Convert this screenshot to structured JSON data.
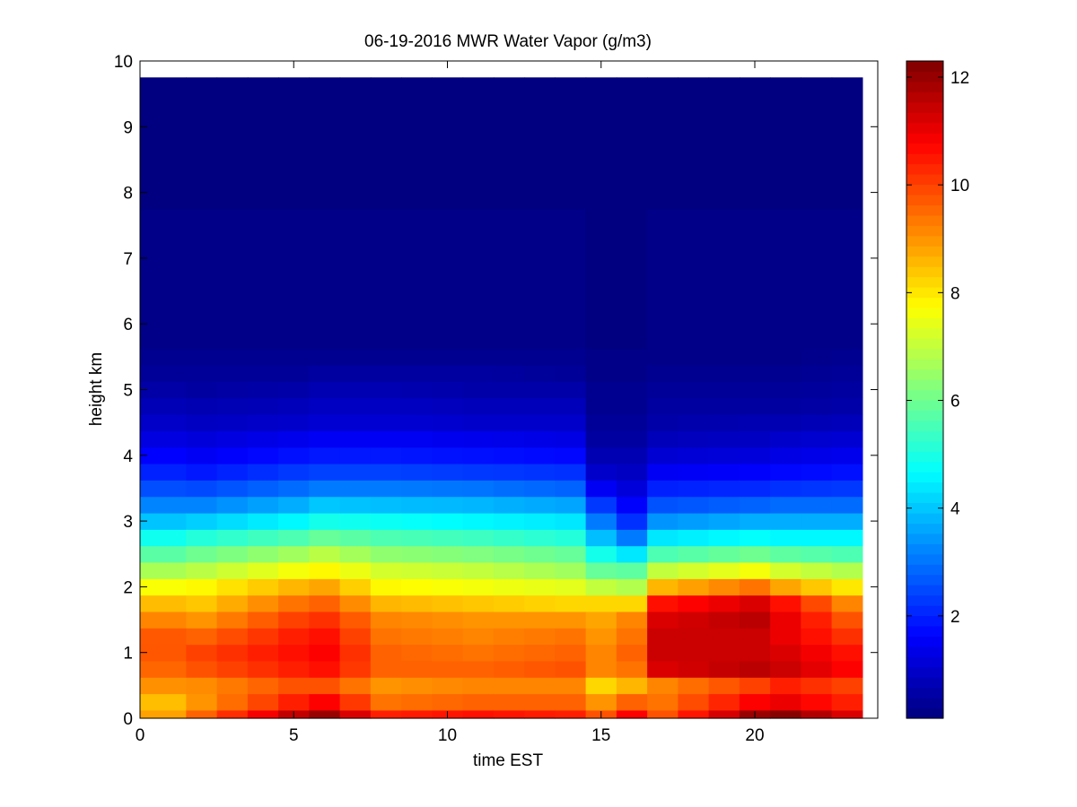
{
  "chart_data": {
    "type": "heatmap",
    "title": "06-19-2016 MWR Water Vapor (g/m3)",
    "xlabel": "time EST",
    "ylabel": "height km",
    "xlim": [
      0,
      24
    ],
    "ylim": [
      0,
      10
    ],
    "x_ticks": [
      0,
      5,
      10,
      15,
      20
    ],
    "y_ticks": [
      0,
      1,
      2,
      3,
      4,
      5,
      6,
      7,
      8,
      9,
      10
    ],
    "colorbar": {
      "colormap": "jet",
      "range": [
        0.1,
        12.3
      ],
      "ticks": [
        2,
        4,
        6,
        8,
        10,
        12
      ]
    },
    "x_edges": [
      0,
      1.5,
      2.5,
      3.5,
      4.5,
      5.5,
      6.5,
      7.5,
      8.5,
      9.5,
      10.5,
      11.5,
      12.5,
      13.5,
      14.5,
      15.5,
      16.5,
      17.5,
      18.5,
      19.5,
      20.5,
      21.5,
      22.5,
      23.5
    ],
    "heights_km": [
      0,
      0.25,
      0.5,
      0.75,
      1.0,
      1.25,
      1.5,
      1.75,
      2.0,
      2.25,
      2.5,
      2.75,
      3.0,
      3.25,
      3.5,
      3.75,
      4.0,
      4.25,
      4.5,
      4.75,
      5.0,
      5.25,
      5.5,
      5.75,
      9.75
    ],
    "profiles": [
      {
        "t": 0,
        "v": [
          8.4,
          8.2,
          9.0,
          9.4,
          9.6,
          9.8,
          9.3,
          8.6,
          7.6,
          6.6,
          5.6,
          4.7,
          3.9,
          3.2,
          2.6,
          2.1,
          1.7,
          1.3,
          1.0,
          0.8,
          0.6,
          0.4,
          0.3,
          0.2,
          0.1
        ]
      },
      {
        "t": 2,
        "v": [
          9.6,
          9.0,
          9.1,
          9.8,
          10.0,
          9.6,
          9.0,
          8.4,
          7.8,
          6.9,
          6.0,
          5.1,
          4.1,
          3.2,
          2.5,
          1.9,
          1.5,
          1.2,
          0.9,
          0.7,
          0.5,
          0.4,
          0.3,
          0.2,
          0.1
        ]
      },
      {
        "t": 5,
        "v": [
          11.5,
          10.4,
          9.8,
          10.4,
          10.6,
          10.4,
          10.0,
          9.4,
          8.6,
          7.6,
          6.6,
          5.6,
          4.6,
          3.7,
          2.9,
          2.3,
          1.8,
          1.4,
          1.0,
          0.8,
          0.6,
          0.4,
          0.3,
          0.2,
          0.1
        ]
      },
      {
        "t": 6,
        "v": [
          12.0,
          10.8,
          9.8,
          10.6,
          10.8,
          10.6,
          10.2,
          9.6,
          8.8,
          7.8,
          6.9,
          5.9,
          4.9,
          4.0,
          3.1,
          2.4,
          1.9,
          1.5,
          1.1,
          0.9,
          0.7,
          0.5,
          0.3,
          0.2,
          0.1
        ]
      },
      {
        "t": 8,
        "v": [
          10.4,
          9.4,
          9.0,
          9.6,
          9.6,
          9.4,
          9.2,
          8.6,
          7.8,
          7.2,
          6.4,
          5.6,
          4.8,
          3.9,
          3.1,
          2.4,
          1.9,
          1.5,
          1.1,
          0.9,
          0.7,
          0.5,
          0.3,
          0.2,
          0.1
        ]
      },
      {
        "t": 11,
        "v": [
          10.6,
          9.6,
          9.2,
          9.6,
          9.4,
          9.2,
          9.0,
          8.4,
          7.6,
          7.0,
          6.2,
          5.4,
          4.6,
          3.8,
          3.0,
          2.3,
          1.8,
          1.4,
          1.0,
          0.8,
          0.6,
          0.5,
          0.3,
          0.2,
          0.1
        ]
      },
      {
        "t": 14,
        "v": [
          10.4,
          9.6,
          9.2,
          9.8,
          9.6,
          9.4,
          9.0,
          8.2,
          7.4,
          6.6,
          5.9,
          5.1,
          4.4,
          3.6,
          2.8,
          2.2,
          1.7,
          1.3,
          1.0,
          0.8,
          0.6,
          0.4,
          0.3,
          0.2,
          0.1
        ]
      },
      {
        "t": 15,
        "v": [
          9.8,
          9.0,
          8.2,
          9.2,
          9.2,
          9.0,
          8.8,
          8.2,
          7.0,
          5.9,
          4.9,
          3.9,
          3.1,
          2.3,
          1.5,
          1.0,
          0.7,
          0.5,
          0.4,
          0.3,
          0.3,
          0.2,
          0.2,
          0.1,
          0.1
        ]
      },
      {
        "t": 16,
        "v": [
          10.8,
          9.6,
          8.6,
          9.4,
          9.6,
          9.4,
          9.2,
          8.2,
          6.8,
          5.8,
          4.4,
          3.1,
          2.2,
          1.6,
          1.2,
          0.9,
          0.7,
          0.5,
          0.4,
          0.3,
          0.3,
          0.2,
          0.2,
          0.1,
          0.1
        ]
      },
      {
        "t": 17,
        "v": [
          9.8,
          9.4,
          9.2,
          11.2,
          11.4,
          11.4,
          11.2,
          10.6,
          8.6,
          7.0,
          5.6,
          4.4,
          3.4,
          2.6,
          2.0,
          1.5,
          1.1,
          0.8,
          0.6,
          0.5,
          0.4,
          0.3,
          0.2,
          0.2,
          0.1
        ]
      },
      {
        "t": 20,
        "v": [
          12.0,
          10.8,
          10.0,
          11.6,
          11.4,
          11.4,
          11.6,
          11.2,
          9.4,
          7.6,
          6.0,
          4.7,
          3.7,
          2.8,
          2.1,
          1.6,
          1.2,
          0.9,
          0.7,
          0.5,
          0.4,
          0.3,
          0.2,
          0.2,
          0.1
        ]
      },
      {
        "t": 21,
        "v": [
          12.2,
          11.0,
          10.4,
          11.4,
          11.2,
          11.0,
          11.0,
          10.6,
          8.8,
          7.2,
          5.8,
          4.6,
          3.7,
          2.9,
          2.2,
          1.7,
          1.3,
          1.0,
          0.7,
          0.5,
          0.4,
          0.3,
          0.2,
          0.2,
          0.1
        ]
      },
      {
        "t": 23,
        "v": [
          11.2,
          10.4,
          10.0,
          10.8,
          10.6,
          10.2,
          9.8,
          9.2,
          8.0,
          6.8,
          5.6,
          4.6,
          3.7,
          2.9,
          2.3,
          1.8,
          1.4,
          1.1,
          0.8,
          0.6,
          0.5,
          0.4,
          0.3,
          0.2,
          0.1
        ]
      }
    ]
  }
}
